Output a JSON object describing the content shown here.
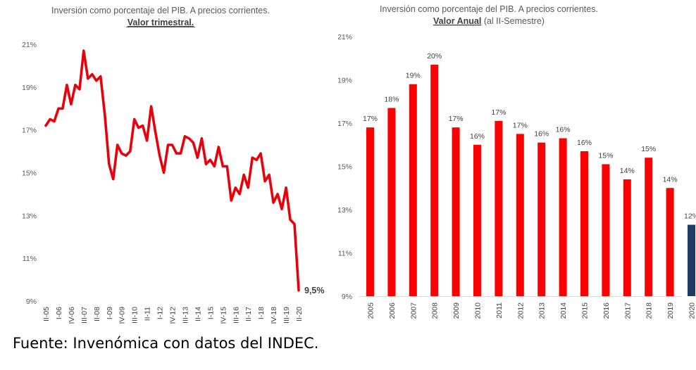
{
  "source": "Fuente: Invenómica con datos del INDEC.",
  "chart_data": [
    {
      "type": "line",
      "title": "Inversión como porcentaje del PIB. A precios corrientes.",
      "subtitle": "Valor trimestral.",
      "ylim": [
        9,
        21
      ],
      "yticks": [
        "9%",
        "11%",
        "13%",
        "15%",
        "17%",
        "19%",
        "21%"
      ],
      "ytick_values": [
        9,
        11,
        13,
        15,
        17,
        19,
        21
      ],
      "x_tick_labels": [
        "II-05",
        "I-06",
        "IV-06",
        "III-07",
        "II-08",
        "I-09",
        "IV-09",
        "III-10",
        "II-11",
        "I-12",
        "IV-12",
        "III-13",
        "II-14",
        "I-15",
        "IV-15",
        "III-16",
        "II-17",
        "I-18",
        "IV-18",
        "III-19",
        "II-20"
      ],
      "x_tick_every": 3,
      "end_label": "9,5%",
      "color": "#e8000b",
      "values": [
        17.2,
        17.5,
        17.4,
        18.0,
        18.0,
        19.1,
        18.2,
        19.1,
        18.9,
        20.7,
        19.4,
        19.6,
        19.3,
        19.5,
        17.7,
        15.4,
        14.7,
        16.3,
        15.9,
        15.8,
        16.0,
        17.5,
        17.1,
        17.2,
        16.5,
        18.1,
        16.9,
        15.8,
        15.0,
        16.3,
        16.3,
        15.9,
        15.9,
        16.7,
        16.6,
        16.4,
        15.7,
        16.6,
        15.4,
        15.6,
        15.3,
        16.2,
        15.3,
        15.3,
        13.7,
        14.3,
        14.0,
        14.9,
        14.3,
        15.7,
        15.6,
        15.9,
        14.6,
        14.9,
        13.6,
        14.0,
        13.3,
        14.3,
        12.8,
        12.6,
        9.5
      ]
    },
    {
      "type": "bar",
      "title": "Inversión como porcentaje del PIB. A precios corrientes.",
      "subtitle_underlined": "Valor Anual",
      "subtitle_rest": " (al II-Semestre)",
      "ylim": [
        9,
        21
      ],
      "yticks": [
        "9%",
        "11%",
        "13%",
        "15%",
        "17%",
        "19%",
        "21%"
      ],
      "ytick_values": [
        9,
        11,
        13,
        15,
        17,
        19,
        21
      ],
      "categories": [
        "2005",
        "2006",
        "2007",
        "2008",
        "2009",
        "2010",
        "2011",
        "2012",
        "2013",
        "2014",
        "2015",
        "2016",
        "2017",
        "2018",
        "2019",
        "2020"
      ],
      "values": [
        16.8,
        17.7,
        18.8,
        19.7,
        16.8,
        16.0,
        17.1,
        16.5,
        16.1,
        16.3,
        15.7,
        15.1,
        14.4,
        15.4,
        14.0,
        12.3
      ],
      "data_labels": [
        "17%",
        "18%",
        "19%",
        "20%",
        "17%",
        "16%",
        "17%",
        "17%",
        "16%",
        "16%",
        "16%",
        "15%",
        "14%",
        "15%",
        "14%",
        "12%"
      ],
      "colors": [
        "#ff0000",
        "#ff0000",
        "#ff0000",
        "#ff0000",
        "#ff0000",
        "#ff0000",
        "#ff0000",
        "#ff0000",
        "#ff0000",
        "#ff0000",
        "#ff0000",
        "#ff0000",
        "#ff0000",
        "#ff0000",
        "#ff0000",
        "#203864"
      ]
    }
  ]
}
